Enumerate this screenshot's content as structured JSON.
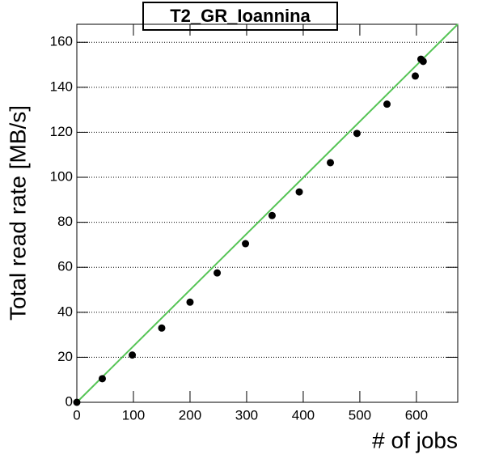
{
  "chart_data": {
    "type": "scatter",
    "title": "T2_GR_Ioannina",
    "x_label": "# of jobs",
    "y_label": "Total read rate [MB/s]",
    "x": [
      0,
      45,
      98,
      150,
      200,
      248,
      298,
      345,
      393,
      448,
      495,
      548,
      598,
      608,
      612
    ],
    "values": [
      0,
      10.5,
      21,
      33,
      44.5,
      57.5,
      70.5,
      83,
      93.5,
      106.5,
      119.5,
      132.5,
      145,
      152.5,
      151.5
    ],
    "color": "#000000",
    "fit_line": {
      "x": [
        0,
        673
      ],
      "values": [
        0,
        168
      ],
      "color": "#55c455"
    },
    "xlim": [
      0,
      673
    ],
    "ylim": [
      0,
      168
    ],
    "xticks": [
      0,
      100,
      200,
      300,
      400,
      500,
      600
    ],
    "yticks": [
      0,
      20,
      40,
      60,
      80,
      100,
      120,
      140,
      160
    ],
    "grid": true
  }
}
